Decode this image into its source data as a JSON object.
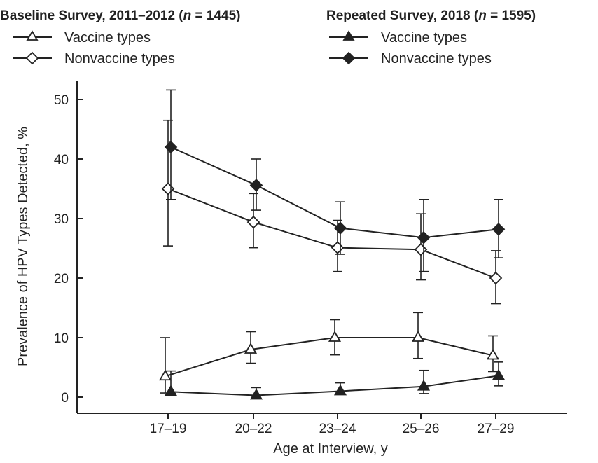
{
  "chart_data": {
    "type": "line",
    "xlabel": "Age at Interview, y",
    "ylabel": "Prevalence of HPV Types Detected, %",
    "ylim": [
      0,
      55
    ],
    "yticks": [
      0,
      10,
      20,
      30,
      40,
      50
    ],
    "grid": false,
    "categories": [
      "17–19",
      "20–22",
      "23–24",
      "25–26",
      "27–29"
    ],
    "legend": {
      "placement": "top",
      "groups": [
        {
          "title_prefix": "Baseline Survey, 2011–2012 (",
          "n_symbol": "n",
          "n_value": " = 1445)",
          "entries": [
            "Vaccine types",
            "Nonvaccine types"
          ]
        },
        {
          "title_prefix": "Repeated Survey, 2018 (",
          "n_symbol": "n",
          "n_value": " = 1595)",
          "entries": [
            "Vaccine types",
            "Nonvaccine types"
          ]
        }
      ]
    },
    "series": [
      {
        "name": "Vaccine types",
        "survey": "Baseline Survey, 2011–2012",
        "marker": "triangle-open",
        "values": [
          3.5,
          8.0,
          10.0,
          10.0,
          7.0
        ],
        "ci_low": [
          0.7,
          5.7,
          7.1,
          6.5,
          4.3
        ],
        "ci_high": [
          10.0,
          11.0,
          13.0,
          14.2,
          10.3
        ]
      },
      {
        "name": "Nonvaccine types",
        "survey": "Baseline Survey, 2011–2012",
        "marker": "diamond-open",
        "values": [
          35.0,
          29.4,
          25.1,
          24.8,
          20.0
        ],
        "ci_low": [
          25.4,
          25.1,
          21.1,
          19.7,
          15.7
        ],
        "ci_high": [
          46.5,
          34.2,
          29.7,
          30.8,
          24.6
        ]
      },
      {
        "name": "Vaccine types",
        "survey": "Repeated Survey, 2018",
        "marker": "triangle-filled",
        "values": [
          0.9,
          0.3,
          1.0,
          1.8,
          3.6
        ],
        "ci_low": [
          0.6,
          0.2,
          0.5,
          0.6,
          1.9
        ],
        "ci_high": [
          4.4,
          1.6,
          2.4,
          4.5,
          5.9
        ]
      },
      {
        "name": "Nonvaccine types",
        "survey": "Repeated Survey, 2018",
        "marker": "diamond-filled",
        "values": [
          42.0,
          35.6,
          28.4,
          26.8,
          28.2
        ],
        "ci_low": [
          33.2,
          31.4,
          24.0,
          21.1,
          23.4
        ],
        "ci_high": [
          51.6,
          40.0,
          32.8,
          33.2,
          33.2
        ]
      }
    ]
  }
}
